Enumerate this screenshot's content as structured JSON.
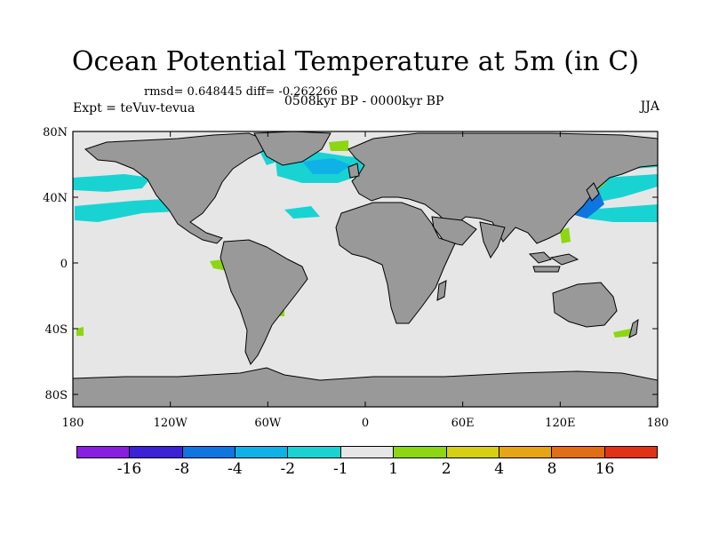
{
  "title": "Ocean Potential Temperature at 5m (in C)",
  "stats_line": "rmsd= 0.648445  diff= -0.262266",
  "experiment": "Expt = teVuv-tevua",
  "period": "0508kyr BP - 0000kyr BP",
  "season": "JJA",
  "x_ticks": [
    "180",
    "120W",
    "60W",
    "0",
    "60E",
    "120E",
    "180"
  ],
  "y_ticks": [
    "80N",
    "40N",
    "0",
    "40S",
    "80S"
  ],
  "colors": {
    "land": "#999999",
    "ocean_neutral": "#e6e6e6",
    "cool_light": "#19d3d3",
    "cool_mid": "#0fb2e6",
    "cool_strong": "#0f75e0",
    "warm_light": "#8cd711"
  },
  "colorbar": {
    "colors": [
      "#8a1ee0",
      "#3c22d6",
      "#0f75e0",
      "#0fb2e6",
      "#19d3d3",
      "#e6e6e6",
      "#8cd711",
      "#d6cf14",
      "#e6a514",
      "#e06e14",
      "#e03214"
    ],
    "labels": [
      "-16",
      "-8",
      "-4",
      "-2",
      "-1",
      "1",
      "2",
      "4",
      "8",
      "16"
    ]
  }
}
